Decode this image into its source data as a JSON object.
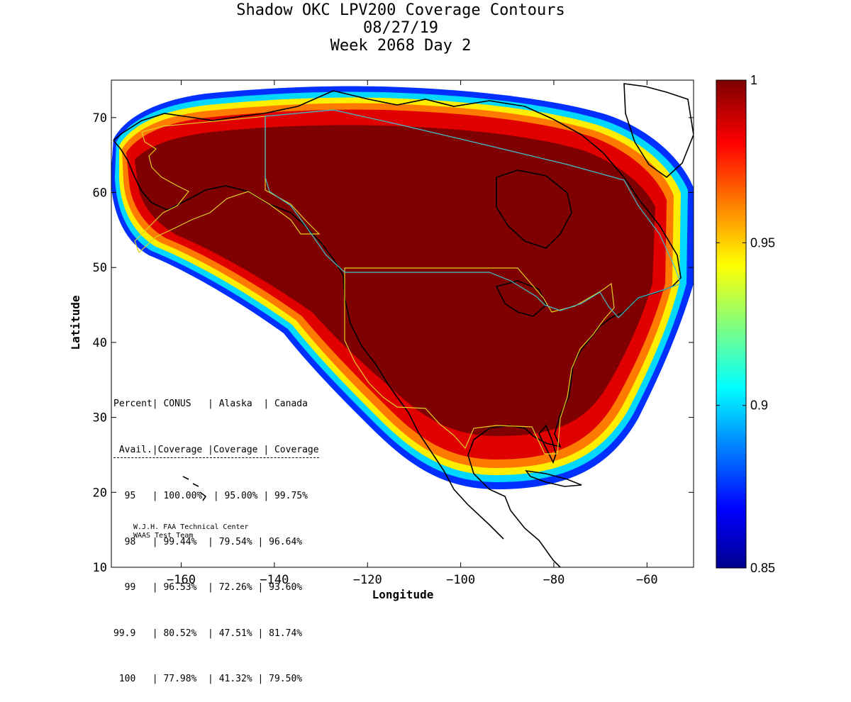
{
  "title": {
    "line1": "Shadow OKC LPV200 Coverage Contours",
    "line2": "08/27/19",
    "line3": "Week 2068 Day 2"
  },
  "axes": {
    "xlabel": "Longitude",
    "ylabel": "Latitude",
    "xlim": [
      -175,
      -50
    ],
    "ylim": [
      10,
      75
    ],
    "xticks": [
      -160,
      -140,
      -120,
      -100,
      -80,
      -60
    ],
    "yticks": [
      10,
      20,
      30,
      40,
      50,
      60,
      70
    ]
  },
  "colorbar": {
    "min": 0.85,
    "max": 1,
    "ticks": [
      {
        "value": 1,
        "label": "1"
      },
      {
        "value": 0.95,
        "label": "0.95"
      },
      {
        "value": 0.9,
        "label": "0.9"
      },
      {
        "value": 0.85,
        "label": "0.85"
      }
    ]
  },
  "table": {
    "header1": "Percent| CONUS   | Alaska  | Canada",
    "header2": " Avail.|Coverage |Coverage | Coverage",
    "rows": [
      "  95   | 100.00%  | 95.00% | 99.75%",
      "  98   | 99.44%  | 79.54% | 96.64%",
      "  99   | 96.53%  | 72.26% | 93.60%",
      "99.9   | 80.52%  | 47.51% | 81.74%",
      " 100   | 77.98%  | 41.32% | 79.50%"
    ]
  },
  "credit": {
    "line1": "W.J.H. FAA Technical Center",
    "line2": "WAAS Test Team"
  },
  "colors": {
    "max": "#7f0000",
    "red": "#e00000",
    "orange": "#ff7a00",
    "yellow": "#ffee00",
    "cyan": "#00d8ff",
    "blue": "#0030ff",
    "us_border": "#e0d020",
    "ca_border": "#40c0d0"
  }
}
